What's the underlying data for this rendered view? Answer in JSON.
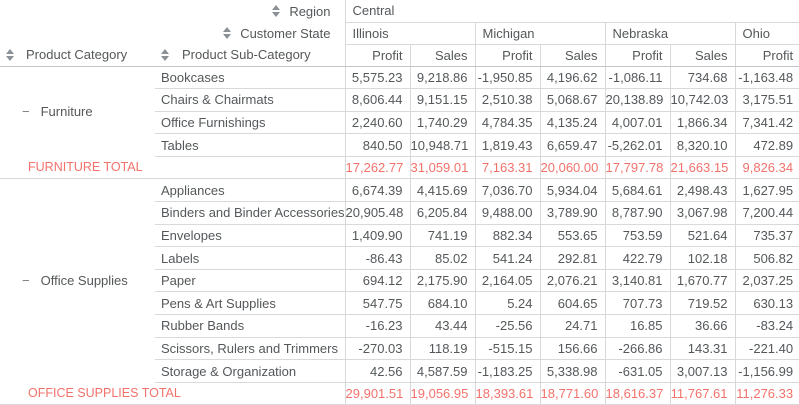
{
  "corner": {
    "region_label": "Region",
    "customer_state_label": "Customer State"
  },
  "region_value": "Central",
  "columns": {
    "category_label": "Product Category",
    "subcategory_label": "Product Sub-Category",
    "states": [
      {
        "name": "Illinois",
        "span": 2
      },
      {
        "name": "Michigan",
        "span": 2
      },
      {
        "name": "Nebraska",
        "span": 2
      },
      {
        "name": "Ohio",
        "span": 1
      }
    ],
    "measures": [
      "Profit",
      "Sales",
      "Profit",
      "Sales",
      "Profit",
      "Sales",
      "Profit"
    ]
  },
  "icons": {
    "collapse_glyph": "−"
  },
  "colors": {
    "total_accent": "#f3726b",
    "text": "#54585a",
    "gridline": "#d9d9d9"
  },
  "groups": [
    {
      "category": "Furniture",
      "rows": [
        {
          "name": "Bookcases",
          "values": [
            "5,575.23",
            "9,218.86",
            "-1,950.85",
            "4,196.62",
            "-1,086.11",
            "734.68",
            "-1,163.48"
          ]
        },
        {
          "name": "Chairs & Chairmats",
          "values": [
            "8,606.44",
            "9,151.15",
            "2,510.38",
            "5,068.67",
            "20,138.89",
            "10,742.03",
            "3,175.51"
          ]
        },
        {
          "name": "Office Furnishings",
          "values": [
            "2,240.60",
            "1,740.29",
            "4,784.35",
            "4,135.24",
            "4,007.01",
            "1,866.34",
            "7,341.42"
          ]
        },
        {
          "name": "Tables",
          "values": [
            "840.50",
            "10,948.71",
            "1,819.43",
            "6,659.47",
            "-5,262.01",
            "8,320.10",
            "472.89"
          ]
        }
      ],
      "total": {
        "label": "FURNITURE TOTAL",
        "values": [
          "17,262.77",
          "31,059.01",
          "7,163.31",
          "20,060.00",
          "17,797.78",
          "21,663.15",
          "9,826.34"
        ]
      }
    },
    {
      "category": "Office Supplies",
      "rows": [
        {
          "name": "Appliances",
          "values": [
            "6,674.39",
            "4,415.69",
            "7,036.70",
            "5,934.04",
            "5,684.61",
            "2,498.43",
            "1,627.95"
          ]
        },
        {
          "name": "Binders and Binder Accessories",
          "values": [
            "20,905.48",
            "6,205.84",
            "9,488.00",
            "3,789.90",
            "8,787.90",
            "3,067.98",
            "7,200.44"
          ]
        },
        {
          "name": "Envelopes",
          "values": [
            "1,409.90",
            "741.19",
            "882.34",
            "553.65",
            "753.59",
            "521.64",
            "735.37"
          ]
        },
        {
          "name": "Labels",
          "values": [
            "-86.43",
            "85.02",
            "541.24",
            "292.81",
            "422.79",
            "102.18",
            "506.82"
          ]
        },
        {
          "name": "Paper",
          "values": [
            "694.12",
            "2,175.90",
            "2,164.05",
            "2,076.21",
            "3,140.81",
            "1,670.77",
            "2,037.25"
          ]
        },
        {
          "name": "Pens & Art Supplies",
          "values": [
            "547.75",
            "684.10",
            "5.24",
            "604.65",
            "707.73",
            "719.52",
            "630.13"
          ]
        },
        {
          "name": "Rubber Bands",
          "values": [
            "-16.23",
            "43.44",
            "-25.56",
            "24.71",
            "16.85",
            "36.66",
            "-83.24"
          ]
        },
        {
          "name": "Scissors, Rulers and Trimmers",
          "values": [
            "-270.03",
            "118.19",
            "-515.15",
            "156.66",
            "-266.86",
            "143.31",
            "-221.40"
          ]
        },
        {
          "name": "Storage & Organization",
          "values": [
            "42.56",
            "4,587.59",
            "-1,183.25",
            "5,338.98",
            "-631.05",
            "3,007.13",
            "-1,156.99"
          ]
        }
      ],
      "total": {
        "label": "OFFICE SUPPLIES TOTAL",
        "values": [
          "29,901.51",
          "19,056.95",
          "18,393.61",
          "18,771.60",
          "18,616.37",
          "11,767.61",
          "11,276.33"
        ]
      }
    }
  ]
}
